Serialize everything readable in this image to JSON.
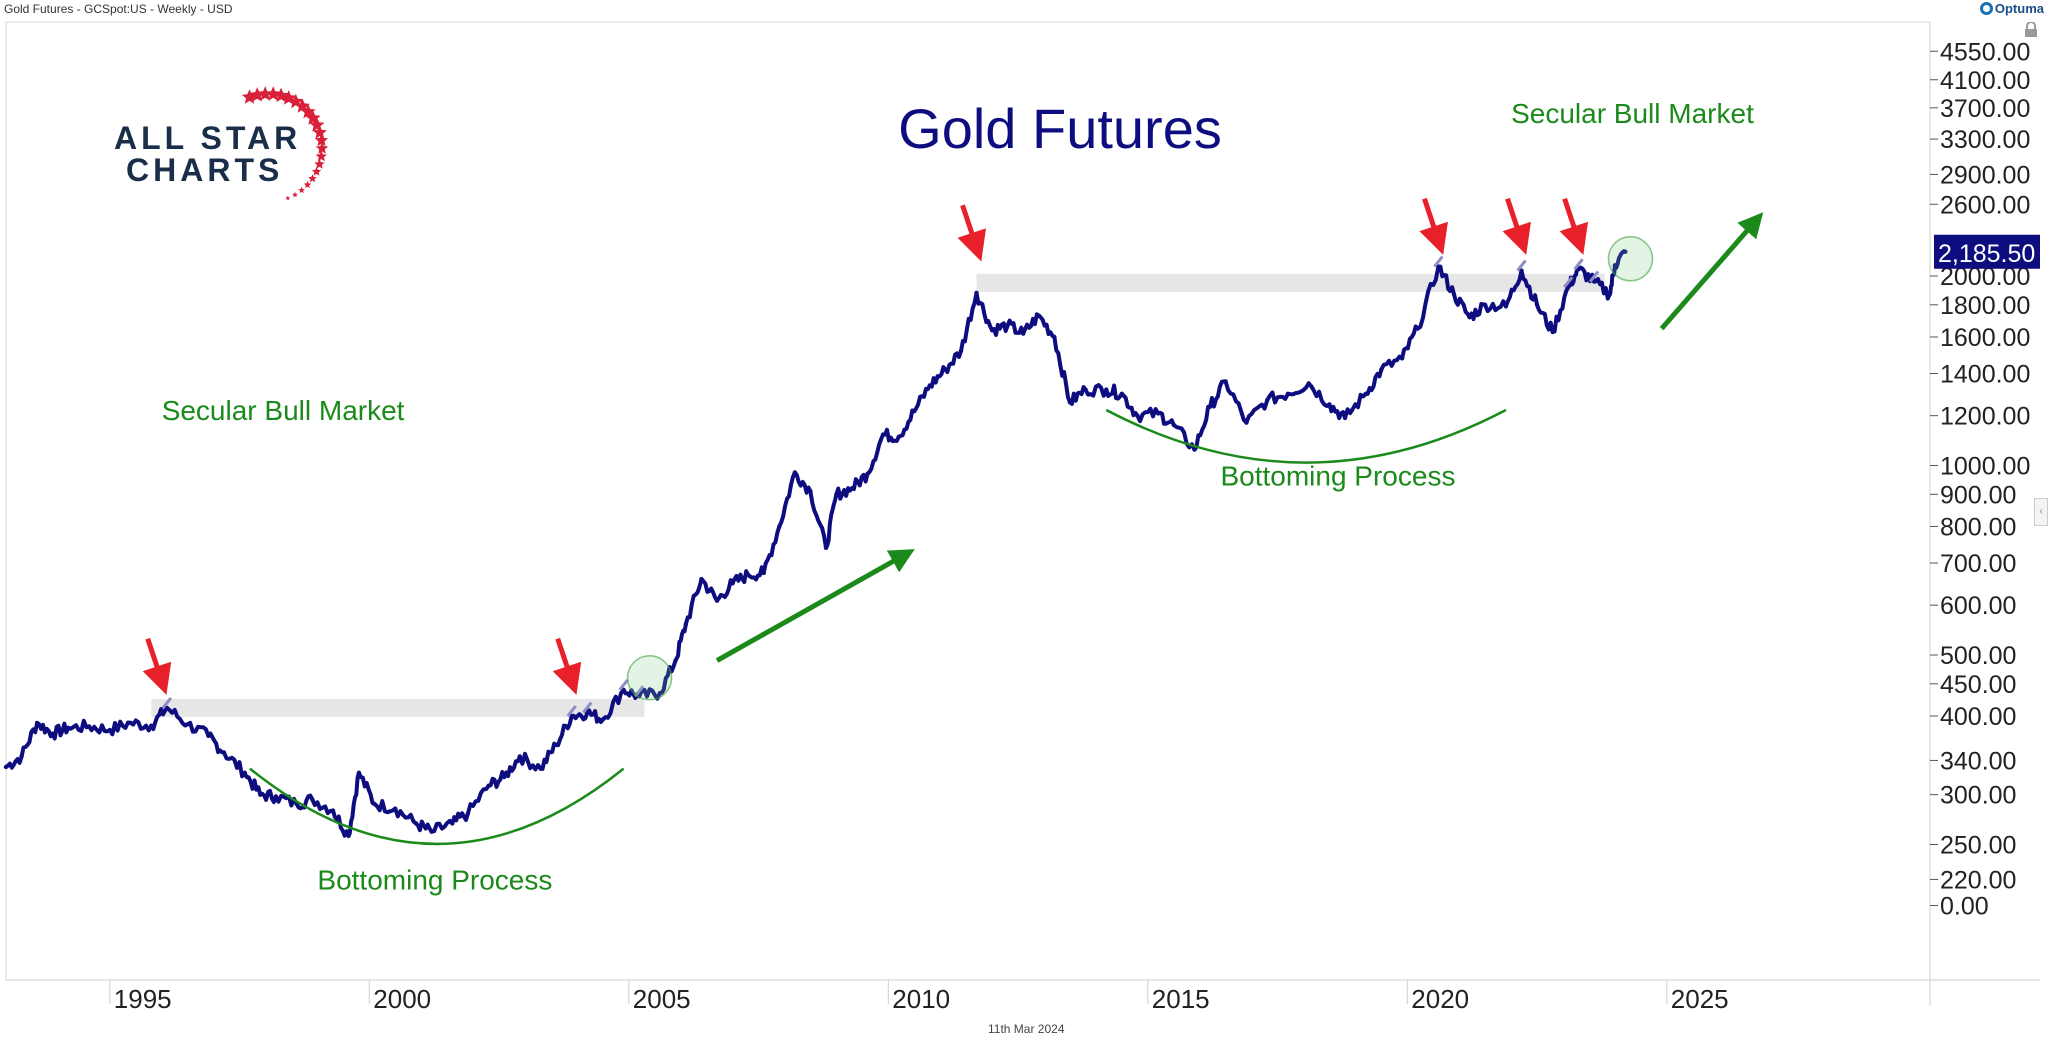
{
  "header": {
    "title": "Gold Futures - GCSpot:US - Weekly - USD",
    "brand": "Optuma",
    "date": "11th Mar 2024"
  },
  "logo": {
    "line1": "ALL STAR",
    "line2": "CHARTS"
  },
  "colors": {
    "series": "#0d0d80",
    "series_highlight": "#8e8ec4",
    "annotation_green": "#1b8a1b",
    "arrow_red": "#e8202a",
    "price_tag_bg": "#0d0d80",
    "resistance_band": "#e6e6e6"
  },
  "chart_data": {
    "type": "line",
    "title": "Gold Futures",
    "xlabel": "",
    "ylabel": "",
    "scale": "log",
    "x_ticks": [
      "1995",
      "2000",
      "2005",
      "2010",
      "2015",
      "2020",
      "2025"
    ],
    "y_ticks": [
      "4550.00",
      "4100.00",
      "3700.00",
      "3300.00",
      "2900.00",
      "2600.00",
      "2000.00",
      "1800.00",
      "1600.00",
      "1400.00",
      "1200.00",
      "1000.00",
      "900.00",
      "800.00",
      "700.00",
      "600.00",
      "500.00",
      "450.00",
      "400.00",
      "340.00",
      "300.00",
      "250.00",
      "220.00",
      "0.00"
    ],
    "last_price_label": "2,185.50",
    "last_price": 2185.5,
    "grid": false,
    "series": [
      {
        "values": [
          [
            1993.0,
            332
          ],
          [
            1993.3,
            345
          ],
          [
            1993.6,
            390
          ],
          [
            1993.9,
            375
          ],
          [
            1994.2,
            383
          ],
          [
            1994.6,
            385
          ],
          [
            1995.0,
            380
          ],
          [
            1995.4,
            390
          ],
          [
            1995.8,
            386
          ],
          [
            1996.1,
            412
          ],
          [
            1996.5,
            388
          ],
          [
            1996.9,
            372
          ],
          [
            1997.2,
            350
          ],
          [
            1997.6,
            325
          ],
          [
            1997.9,
            300
          ],
          [
            1998.2,
            298
          ],
          [
            1998.6,
            290
          ],
          [
            1998.9,
            295
          ],
          [
            1999.3,
            283
          ],
          [
            1999.6,
            258
          ],
          [
            1999.8,
            325
          ],
          [
            2000.1,
            290
          ],
          [
            2000.5,
            285
          ],
          [
            2000.9,
            270
          ],
          [
            2001.2,
            262
          ],
          [
            2001.6,
            270
          ],
          [
            2001.9,
            280
          ],
          [
            2002.3,
            310
          ],
          [
            2002.6,
            320
          ],
          [
            2002.9,
            345
          ],
          [
            2003.3,
            330
          ],
          [
            2003.6,
            360
          ],
          [
            2003.9,
            400
          ],
          [
            2004.2,
            405
          ],
          [
            2004.5,
            395
          ],
          [
            2004.9,
            440
          ],
          [
            2005.2,
            430
          ],
          [
            2005.6,
            435
          ],
          [
            2005.9,
            490
          ],
          [
            2006.1,
            560
          ],
          [
            2006.4,
            660
          ],
          [
            2006.7,
            610
          ],
          [
            2007.0,
            650
          ],
          [
            2007.3,
            670
          ],
          [
            2007.6,
            675
          ],
          [
            2007.9,
            800
          ],
          [
            2008.2,
            975
          ],
          [
            2008.5,
            910
          ],
          [
            2008.8,
            740
          ],
          [
            2009.0,
            900
          ],
          [
            2009.3,
            920
          ],
          [
            2009.6,
            970
          ],
          [
            2009.9,
            1120
          ],
          [
            2010.2,
            1110
          ],
          [
            2010.5,
            1220
          ],
          [
            2010.8,
            1340
          ],
          [
            2011.1,
            1420
          ],
          [
            2011.4,
            1520
          ],
          [
            2011.7,
            1880
          ],
          [
            2012.0,
            1640
          ],
          [
            2012.3,
            1670
          ],
          [
            2012.6,
            1620
          ],
          [
            2012.9,
            1730
          ],
          [
            2013.2,
            1600
          ],
          [
            2013.5,
            1260
          ],
          [
            2013.8,
            1320
          ],
          [
            2014.2,
            1320
          ],
          [
            2014.5,
            1300
          ],
          [
            2014.8,
            1200
          ],
          [
            2015.2,
            1210
          ],
          [
            2015.5,
            1160
          ],
          [
            2015.9,
            1060
          ],
          [
            2016.2,
            1240
          ],
          [
            2016.5,
            1360
          ],
          [
            2016.9,
            1170
          ],
          [
            2017.3,
            1270
          ],
          [
            2017.7,
            1300
          ],
          [
            2018.1,
            1350
          ],
          [
            2018.5,
            1250
          ],
          [
            2018.8,
            1190
          ],
          [
            2019.2,
            1300
          ],
          [
            2019.5,
            1420
          ],
          [
            2019.9,
            1480
          ],
          [
            2020.2,
            1650
          ],
          [
            2020.6,
            2070
          ],
          [
            2020.9,
            1870
          ],
          [
            2021.2,
            1720
          ],
          [
            2021.5,
            1800
          ],
          [
            2021.9,
            1790
          ],
          [
            2022.2,
            2040
          ],
          [
            2022.5,
            1800
          ],
          [
            2022.8,
            1630
          ],
          [
            2023.1,
            1920
          ],
          [
            2023.3,
            2050
          ],
          [
            2023.6,
            1960
          ],
          [
            2023.9,
            1870
          ],
          [
            2024.0,
            2080
          ],
          [
            2024.2,
            2185.5
          ]
        ]
      }
    ],
    "annotations": [
      {
        "text": "Secular Bull Market",
        "x": 1996.0,
        "y": 1180
      },
      {
        "text": "Bottoming Process",
        "x": 1999.0,
        "y": 212
      },
      {
        "text": "Bottoming Process",
        "x": 2016.4,
        "y": 930
      },
      {
        "text": "Secular Bull Market",
        "x": 2022.0,
        "y": 3500
      }
    ],
    "resistance_zones": [
      {
        "x_start": 1995.8,
        "x_end": 2005.3,
        "y": 412
      },
      {
        "x_start": 2011.7,
        "x_end": 2023.8,
        "y": 1950
      }
    ],
    "red_arrows_at": [
      {
        "x": 1996.0,
        "y": 420
      },
      {
        "x": 2003.9,
        "y": 420
      },
      {
        "x": 2011.7,
        "y": 2050
      },
      {
        "x": 2020.6,
        "y": 2100
      },
      {
        "x": 2022.2,
        "y": 2100
      },
      {
        "x": 2023.3,
        "y": 2100
      }
    ],
    "green_arrows": [
      {
        "x1": 2006.7,
        "y1": 490,
        "x2": 2010.3,
        "y2": 720
      },
      {
        "x1": 2024.9,
        "y1": 1650,
        "x2": 2026.7,
        "y2": 2440
      }
    ],
    "bottoming_arcs": [
      {
        "x1": 1997.7,
        "x2": 2004.9,
        "y_top": 330,
        "y_bottom": 245
      },
      {
        "x1": 2014.2,
        "x2": 2021.9,
        "y_top": 1225,
        "y_bottom": 995
      }
    ],
    "breakout_circles": [
      {
        "x": 2005.4,
        "y": 460
      },
      {
        "x": 2024.3,
        "y": 2130
      }
    ]
  }
}
